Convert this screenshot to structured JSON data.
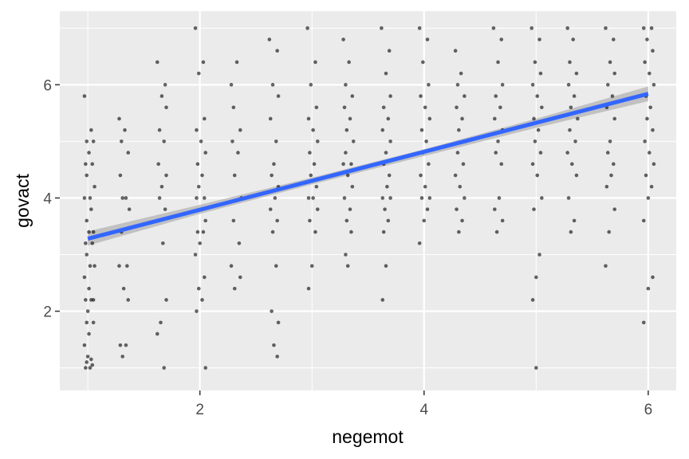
{
  "chart_data": {
    "type": "scatter",
    "title": "",
    "xlabel": "negemot",
    "ylabel": "govact",
    "xlim": [
      0.75,
      6.25
    ],
    "ylim": [
      0.6,
      7.3
    ],
    "x_ticks": [
      2,
      4,
      6
    ],
    "y_ticks": [
      2,
      4,
      6
    ],
    "x_tick_labels": [
      "2",
      "4",
      "6"
    ],
    "y_tick_labels": [
      "2",
      "4",
      "6"
    ],
    "grid": true,
    "panel_background": "#ebebeb",
    "grid_color": "#ffffff",
    "point_color": "#000000",
    "point_opacity": 0.6,
    "fit_line": {
      "x": [
        1,
        6
      ],
      "y": [
        3.28,
        5.84
      ],
      "color": "#3366ff",
      "ribbon_color": "#b3b3b3"
    },
    "ribbon": [
      {
        "x": 1,
        "ymin": 3.16,
        "ymax": 3.41
      },
      {
        "x": 2,
        "ymin": 3.72,
        "ymax": 3.88
      },
      {
        "x": 3,
        "ymin": 4.24,
        "ymax": 4.36
      },
      {
        "x": 4,
        "ymin": 4.74,
        "ymax": 4.86
      },
      {
        "x": 5,
        "ymin": 5.24,
        "ymax": 5.4
      },
      {
        "x": 6,
        "ymin": 5.71,
        "ymax": 5.97
      }
    ],
    "series": [
      {
        "points": [
          [
            0.98,
            1.0
          ],
          [
            1.02,
            1.0
          ],
          [
            1.04,
            1.05
          ],
          [
            0.99,
            1.1
          ],
          [
            1.03,
            1.15
          ],
          [
            1.0,
            1.2
          ],
          [
            0.97,
            1.4
          ],
          [
            1.01,
            1.6
          ],
          [
            1.05,
            1.8
          ],
          [
            0.99,
            1.8
          ],
          [
            1.0,
            2.0
          ],
          [
            1.03,
            2.2
          ],
          [
            0.98,
            2.2
          ],
          [
            1.05,
            2.2
          ],
          [
            1.01,
            2.4
          ],
          [
            0.97,
            2.6
          ],
          [
            1.02,
            2.8
          ],
          [
            1.06,
            2.8
          ],
          [
            0.99,
            3.0
          ],
          [
            1.04,
            3.2
          ],
          [
            0.98,
            3.2
          ],
          [
            1.01,
            3.4
          ],
          [
            1.05,
            3.4
          ],
          [
            0.99,
            3.6
          ],
          [
            1.03,
            3.8
          ],
          [
            0.97,
            4.0
          ],
          [
            1.02,
            4.0
          ],
          [
            1.06,
            4.2
          ],
          [
            0.99,
            4.4
          ],
          [
            1.04,
            4.6
          ],
          [
            0.98,
            4.6
          ],
          [
            1.01,
            4.8
          ],
          [
            1.05,
            5.0
          ],
          [
            0.99,
            5.0
          ],
          [
            1.03,
            5.2
          ],
          [
            0.97,
            5.8
          ],
          [
            1.28,
            5.4
          ],
          [
            1.33,
            5.2
          ],
          [
            1.3,
            5.0
          ],
          [
            1.36,
            4.8
          ],
          [
            1.29,
            4.4
          ],
          [
            1.34,
            4.0
          ],
          [
            1.31,
            4.0
          ],
          [
            1.37,
            3.8
          ],
          [
            1.3,
            3.4
          ],
          [
            1.35,
            2.8
          ],
          [
            1.28,
            2.8
          ],
          [
            1.32,
            2.4
          ],
          [
            1.36,
            2.2
          ],
          [
            1.29,
            1.4
          ],
          [
            1.34,
            1.4
          ],
          [
            1.31,
            1.2
          ],
          [
            1.62,
            6.4
          ],
          [
            1.69,
            6.0
          ],
          [
            1.66,
            5.8
          ],
          [
            1.7,
            5.6
          ],
          [
            1.64,
            5.2
          ],
          [
            1.68,
            5.0
          ],
          [
            1.63,
            4.6
          ],
          [
            1.7,
            4.4
          ],
          [
            1.66,
            4.2
          ],
          [
            1.64,
            4.0
          ],
          [
            1.69,
            3.8
          ],
          [
            1.67,
            3.2
          ],
          [
            1.7,
            2.2
          ],
          [
            1.65,
            1.8
          ],
          [
            1.62,
            1.6
          ],
          [
            1.68,
            1.0
          ],
          [
            1.96,
            7.0
          ],
          [
            2.03,
            6.4
          ],
          [
            1.99,
            6.2
          ],
          [
            2.04,
            5.4
          ],
          [
            1.97,
            5.2
          ],
          [
            2.01,
            5.0
          ],
          [
            2.05,
            4.8
          ],
          [
            1.98,
            4.6
          ],
          [
            2.02,
            4.4
          ],
          [
            1.99,
            4.2
          ],
          [
            2.04,
            4.0
          ],
          [
            1.97,
            4.0
          ],
          [
            2.01,
            3.8
          ],
          [
            2.05,
            3.6
          ],
          [
            1.98,
            3.4
          ],
          [
            2.03,
            3.4
          ],
          [
            2.0,
            3.2
          ],
          [
            1.96,
            3.0
          ],
          [
            2.04,
            2.6
          ],
          [
            1.99,
            2.4
          ],
          [
            2.02,
            2.2
          ],
          [
            1.97,
            2.0
          ],
          [
            2.05,
            1.0
          ],
          [
            2.28,
            6.0
          ],
          [
            2.33,
            6.4
          ],
          [
            2.3,
            5.6
          ],
          [
            2.36,
            5.2
          ],
          [
            2.29,
            5.0
          ],
          [
            2.34,
            4.8
          ],
          [
            2.31,
            4.4
          ],
          [
            2.37,
            4.0
          ],
          [
            2.3,
            3.6
          ],
          [
            2.35,
            3.2
          ],
          [
            2.28,
            2.8
          ],
          [
            2.36,
            2.6
          ],
          [
            2.31,
            2.4
          ],
          [
            2.62,
            6.8
          ],
          [
            2.69,
            6.6
          ],
          [
            2.65,
            6.0
          ],
          [
            2.7,
            5.8
          ],
          [
            2.63,
            5.4
          ],
          [
            2.68,
            5.0
          ],
          [
            2.66,
            4.6
          ],
          [
            2.64,
            4.4
          ],
          [
            2.7,
            4.2
          ],
          [
            2.67,
            4.0
          ],
          [
            2.63,
            3.8
          ],
          [
            2.69,
            3.6
          ],
          [
            2.65,
            3.4
          ],
          [
            2.68,
            2.8
          ],
          [
            2.64,
            2.0
          ],
          [
            2.7,
            1.8
          ],
          [
            2.66,
            1.4
          ],
          [
            2.69,
            1.2
          ],
          [
            2.96,
            7.0
          ],
          [
            3.03,
            6.4
          ],
          [
            2.99,
            6.0
          ],
          [
            3.04,
            5.6
          ],
          [
            2.97,
            5.4
          ],
          [
            3.01,
            5.2
          ],
          [
            3.05,
            5.0
          ],
          [
            2.98,
            4.8
          ],
          [
            3.02,
            4.6
          ],
          [
            2.99,
            4.4
          ],
          [
            3.04,
            4.2
          ],
          [
            2.97,
            4.0
          ],
          [
            3.01,
            4.0
          ],
          [
            3.05,
            3.8
          ],
          [
            2.98,
            3.6
          ],
          [
            3.03,
            3.4
          ],
          [
            3.0,
            2.8
          ],
          [
            2.97,
            2.4
          ],
          [
            3.28,
            6.8
          ],
          [
            3.33,
            6.4
          ],
          [
            3.3,
            6.0
          ],
          [
            3.36,
            5.8
          ],
          [
            3.29,
            5.6
          ],
          [
            3.34,
            5.4
          ],
          [
            3.31,
            5.2
          ],
          [
            3.37,
            5.0
          ],
          [
            3.3,
            4.8
          ],
          [
            3.35,
            4.6
          ],
          [
            3.28,
            4.6
          ],
          [
            3.32,
            4.4
          ],
          [
            3.36,
            4.2
          ],
          [
            3.29,
            4.0
          ],
          [
            3.34,
            3.8
          ],
          [
            3.31,
            3.6
          ],
          [
            3.35,
            3.4
          ],
          [
            3.3,
            3.0
          ],
          [
            3.32,
            2.8
          ],
          [
            3.62,
            7.0
          ],
          [
            3.69,
            6.6
          ],
          [
            3.66,
            6.2
          ],
          [
            3.7,
            5.8
          ],
          [
            3.64,
            5.6
          ],
          [
            3.68,
            5.4
          ],
          [
            3.63,
            5.2
          ],
          [
            3.7,
            5.0
          ],
          [
            3.66,
            4.8
          ],
          [
            3.64,
            4.6
          ],
          [
            3.69,
            4.4
          ],
          [
            3.67,
            4.2
          ],
          [
            3.63,
            4.0
          ],
          [
            3.7,
            4.0
          ],
          [
            3.65,
            3.8
          ],
          [
            3.68,
            3.6
          ],
          [
            3.64,
            3.4
          ],
          [
            3.66,
            2.8
          ],
          [
            3.63,
            2.2
          ],
          [
            3.96,
            7.0
          ],
          [
            4.03,
            6.8
          ],
          [
            3.99,
            6.4
          ],
          [
            4.04,
            6.0
          ],
          [
            3.97,
            5.8
          ],
          [
            4.01,
            5.6
          ],
          [
            4.05,
            5.4
          ],
          [
            3.98,
            5.2
          ],
          [
            4.02,
            5.0
          ],
          [
            3.99,
            4.8
          ],
          [
            4.04,
            4.6
          ],
          [
            3.97,
            4.4
          ],
          [
            4.01,
            4.2
          ],
          [
            4.05,
            4.0
          ],
          [
            3.98,
            4.0
          ],
          [
            4.03,
            3.8
          ],
          [
            4.0,
            3.6
          ],
          [
            3.96,
            3.2
          ],
          [
            4.28,
            6.6
          ],
          [
            4.33,
            6.2
          ],
          [
            4.3,
            6.0
          ],
          [
            4.36,
            5.8
          ],
          [
            4.29,
            5.6
          ],
          [
            4.34,
            5.4
          ],
          [
            4.31,
            5.2
          ],
          [
            4.37,
            5.0
          ],
          [
            4.3,
            4.8
          ],
          [
            4.35,
            4.6
          ],
          [
            4.28,
            4.4
          ],
          [
            4.32,
            4.2
          ],
          [
            4.36,
            4.0
          ],
          [
            4.29,
            3.8
          ],
          [
            4.34,
            3.6
          ],
          [
            4.31,
            3.4
          ],
          [
            4.62,
            7.0
          ],
          [
            4.69,
            6.8
          ],
          [
            4.66,
            6.4
          ],
          [
            4.7,
            6.0
          ],
          [
            4.64,
            5.8
          ],
          [
            4.68,
            5.6
          ],
          [
            4.63,
            5.4
          ],
          [
            4.7,
            5.2
          ],
          [
            4.66,
            5.0
          ],
          [
            4.64,
            4.8
          ],
          [
            4.69,
            4.6
          ],
          [
            4.67,
            4.0
          ],
          [
            4.63,
            3.8
          ],
          [
            4.7,
            3.6
          ],
          [
            4.65,
            3.4
          ],
          [
            4.96,
            7.0
          ],
          [
            5.03,
            6.8
          ],
          [
            4.99,
            6.4
          ],
          [
            5.04,
            6.2
          ],
          [
            4.97,
            6.0
          ],
          [
            5.01,
            5.8
          ],
          [
            5.05,
            5.6
          ],
          [
            4.98,
            5.4
          ],
          [
            5.02,
            5.2
          ],
          [
            4.99,
            5.0
          ],
          [
            5.04,
            4.8
          ],
          [
            4.97,
            4.6
          ],
          [
            5.01,
            4.4
          ],
          [
            5.05,
            4.0
          ],
          [
            4.98,
            3.8
          ],
          [
            5.03,
            3.0
          ],
          [
            5.0,
            2.6
          ],
          [
            4.97,
            2.2
          ],
          [
            5.0,
            1.0
          ],
          [
            5.28,
            7.0
          ],
          [
            5.33,
            6.8
          ],
          [
            5.3,
            6.4
          ],
          [
            5.36,
            6.2
          ],
          [
            5.29,
            6.0
          ],
          [
            5.34,
            5.8
          ],
          [
            5.31,
            5.6
          ],
          [
            5.37,
            5.4
          ],
          [
            5.3,
            5.2
          ],
          [
            5.35,
            5.0
          ],
          [
            5.28,
            4.8
          ],
          [
            5.32,
            4.6
          ],
          [
            5.36,
            4.4
          ],
          [
            5.29,
            4.0
          ],
          [
            5.34,
            3.6
          ],
          [
            5.31,
            3.4
          ],
          [
            5.62,
            7.0
          ],
          [
            5.69,
            6.8
          ],
          [
            5.66,
            6.4
          ],
          [
            5.7,
            6.2
          ],
          [
            5.64,
            6.0
          ],
          [
            5.68,
            5.8
          ],
          [
            5.63,
            5.6
          ],
          [
            5.7,
            5.4
          ],
          [
            5.66,
            5.0
          ],
          [
            5.64,
            4.8
          ],
          [
            5.69,
            4.6
          ],
          [
            5.67,
            4.4
          ],
          [
            5.63,
            4.2
          ],
          [
            5.7,
            3.8
          ],
          [
            5.65,
            3.4
          ],
          [
            5.62,
            2.8
          ],
          [
            5.96,
            7.0
          ],
          [
            6.03,
            7.0
          ],
          [
            5.99,
            6.8
          ],
          [
            6.04,
            6.6
          ],
          [
            5.97,
            6.4
          ],
          [
            6.01,
            6.2
          ],
          [
            6.05,
            6.0
          ],
          [
            5.98,
            5.8
          ],
          [
            6.02,
            5.6
          ],
          [
            5.99,
            5.4
          ],
          [
            6.04,
            5.2
          ],
          [
            5.97,
            5.0
          ],
          [
            6.01,
            4.8
          ],
          [
            6.05,
            4.6
          ],
          [
            5.98,
            4.4
          ],
          [
            6.03,
            4.2
          ],
          [
            6.0,
            4.0
          ],
          [
            5.96,
            3.6
          ],
          [
            6.04,
            2.6
          ],
          [
            6.0,
            2.4
          ],
          [
            5.96,
            1.8
          ]
        ]
      }
    ]
  }
}
